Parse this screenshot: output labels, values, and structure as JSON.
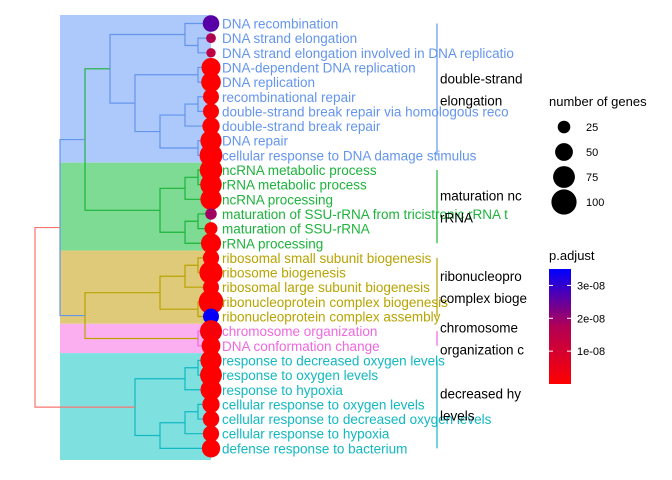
{
  "chart_data": {
    "type": "scatter",
    "subtype": "enrichment-tree",
    "clusters": [
      {
        "id": 0,
        "color": "#6495ED",
        "fill": "#ADC8FA",
        "labels": [
          "double-strand",
          "elongation"
        ]
      },
      {
        "id": 1,
        "color": "#1DB33C",
        "fill": "#7EDB93",
        "labels": [
          "maturation nc",
          "rRNA"
        ]
      },
      {
        "id": 2,
        "color": "#B8A300",
        "fill": "#DFCA7A",
        "labels": [
          "ribonucleopro",
          "complex bioge"
        ]
      },
      {
        "id": 3,
        "color": "#EE68E0",
        "fill": "#FCAFF0",
        "labels": [
          "chromosome",
          "organization c"
        ]
      },
      {
        "id": 4,
        "color": "#12B8C2",
        "fill": "#7FE0E0",
        "labels": [
          "decreased hy",
          "levels"
        ]
      }
    ],
    "terms": [
      {
        "name": "DNA recombination",
        "cluster": 0,
        "count": 62,
        "p_adjust": 2.3e-08
      },
      {
        "name": "DNA strand elongation",
        "cluster": 0,
        "count": 22,
        "p_adjust": 1.1e-08
      },
      {
        "name": "DNA strand elongation involved in DNA replicatio",
        "cluster": 0,
        "count": 20,
        "p_adjust": 9e-09
      },
      {
        "name": "DNA-dependent DNA replication",
        "cluster": 0,
        "count": 82,
        "p_adjust": 1e-10
      },
      {
        "name": "DNA replication",
        "cluster": 0,
        "count": 88,
        "p_adjust": 1e-10
      },
      {
        "name": "recombinational repair",
        "cluster": 0,
        "count": 58,
        "p_adjust": 1e-10
      },
      {
        "name": "double-strand break repair via homologous reco",
        "cluster": 0,
        "count": 58,
        "p_adjust": 1e-10
      },
      {
        "name": "double-strand break repair",
        "cluster": 0,
        "count": 68,
        "p_adjust": 1e-10
      },
      {
        "name": "DNA repair",
        "cluster": 0,
        "count": 102,
        "p_adjust": 1e-10
      },
      {
        "name": "cellular response to DNA damage stimulus",
        "cluster": 0,
        "count": 118,
        "p_adjust": 1e-10
      },
      {
        "name": "ncRNA metabolic process",
        "cluster": 1,
        "count": 115,
        "p_adjust": 1e-10
      },
      {
        "name": "rRNA metabolic process",
        "cluster": 1,
        "count": 105,
        "p_adjust": 1e-10
      },
      {
        "name": "ncRNA processing",
        "cluster": 1,
        "count": 102,
        "p_adjust": 1e-10
      },
      {
        "name": "maturation of SSU-rRNA from tricistronic rRNA t",
        "cluster": 1,
        "count": 30,
        "p_adjust": 1.3e-08
      },
      {
        "name": "maturation of SSU-rRNA",
        "cluster": 1,
        "count": 38,
        "p_adjust": 1e-10
      },
      {
        "name": "rRNA processing",
        "cluster": 1,
        "count": 92,
        "p_adjust": 1e-10
      },
      {
        "name": "ribosomal small subunit biogenesis",
        "cluster": 2,
        "count": 60,
        "p_adjust": 1e-10
      },
      {
        "name": "ribosome biogenesis",
        "cluster": 2,
        "count": 122,
        "p_adjust": 1e-10
      },
      {
        "name": "ribosomal large subunit biogenesis",
        "cluster": 2,
        "count": 58,
        "p_adjust": 1e-10
      },
      {
        "name": "ribonucleoprotein complex biogenesis",
        "cluster": 2,
        "count": 138,
        "p_adjust": 1e-10
      },
      {
        "name": "ribonucleoprotein complex assembly",
        "cluster": 2,
        "count": 58,
        "p_adjust": 3.4e-08
      },
      {
        "name": "chromosome organization",
        "cluster": 3,
        "count": 110,
        "p_adjust": 1.3e-09
      },
      {
        "name": "DNA conformation change",
        "cluster": 3,
        "count": 80,
        "p_adjust": 1e-10
      },
      {
        "name": "response to decreased oxygen levels",
        "cluster": 4,
        "count": 102,
        "p_adjust": 1e-10
      },
      {
        "name": "response to oxygen levels",
        "cluster": 4,
        "count": 108,
        "p_adjust": 1e-10
      },
      {
        "name": "response to hypoxia",
        "cluster": 4,
        "count": 100,
        "p_adjust": 1e-10
      },
      {
        "name": "cellular response to oxygen levels",
        "cluster": 4,
        "count": 68,
        "p_adjust": 1e-10
      },
      {
        "name": "cellular response to decreased oxygen levels",
        "cluster": 4,
        "count": 62,
        "p_adjust": 1e-10
      },
      {
        "name": "cellular response to hypoxia",
        "cluster": 4,
        "count": 60,
        "p_adjust": 1e-10
      },
      {
        "name": "defense response to bacterium",
        "cluster": 4,
        "count": 76,
        "p_adjust": 1e-10
      }
    ],
    "size_legend": {
      "title": "number of genes",
      "values": [
        25,
        50,
        75,
        100
      ]
    },
    "color_legend": {
      "title": "p.adjust",
      "range": [
        0,
        3.5e-08
      ],
      "low_color": "#FF0000",
      "high_color": "#0000FF",
      "ticks": [
        {
          "value": 1e-08,
          "label": "1e-08"
        },
        {
          "value": 2e-08,
          "label": "2e-08"
        },
        {
          "value": 3e-08,
          "label": "3e-08"
        }
      ]
    },
    "legend_position": "right"
  }
}
